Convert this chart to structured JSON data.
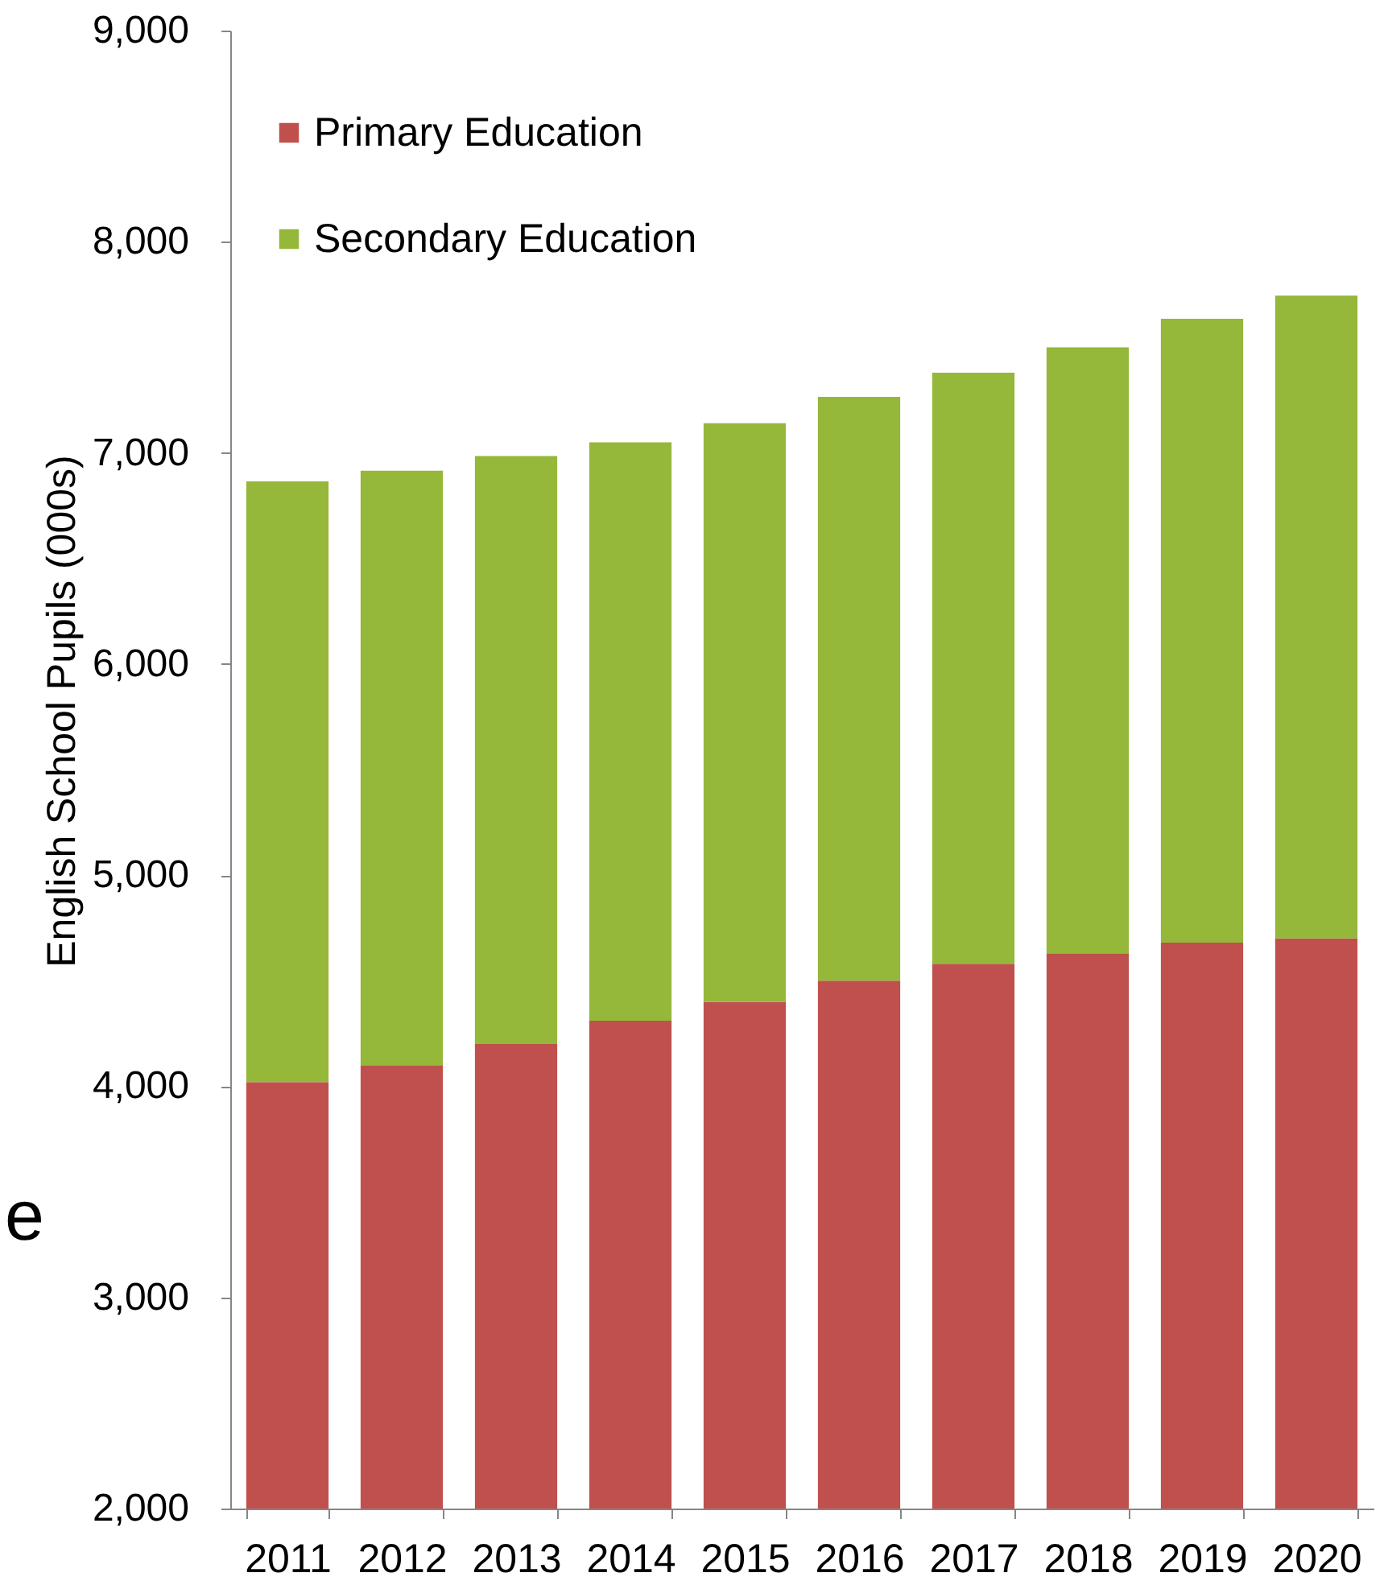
{
  "chart_data": {
    "type": "bar",
    "ylabel": "English School Pupils (000s)",
    "categories": [
      "2011",
      "2012",
      "2013",
      "2014",
      "2015",
      "2016",
      "2017",
      "2018",
      "2019",
      "2020"
    ],
    "series": [
      {
        "name": "Primary Education",
        "color": "#c0504d",
        "values": [
          4020,
          4100,
          4200,
          4310,
          4400,
          4500,
          4580,
          4630,
          4680,
          4700
        ]
      },
      {
        "name": "Secondary Education",
        "color": "#95b73a",
        "values": [
          2845,
          2815,
          2785,
          2740,
          2740,
          2765,
          2800,
          2870,
          2955,
          3045
        ]
      }
    ],
    "stacked": true,
    "ylim": [
      2000,
      9000
    ],
    "yticks": [
      {
        "value": 2000,
        "label": "2,000"
      },
      {
        "value": 3000,
        "label": "3,000"
      },
      {
        "value": 4000,
        "label": "4,000"
      },
      {
        "value": 5000,
        "label": "5,000"
      },
      {
        "value": 6000,
        "label": "6,000"
      },
      {
        "value": 7000,
        "label": "7,000"
      },
      {
        "value": 8000,
        "label": "8,000"
      },
      {
        "value": 9000,
        "label": "9,000"
      }
    ],
    "legend": "top left",
    "annotations": [
      "e"
    ]
  }
}
